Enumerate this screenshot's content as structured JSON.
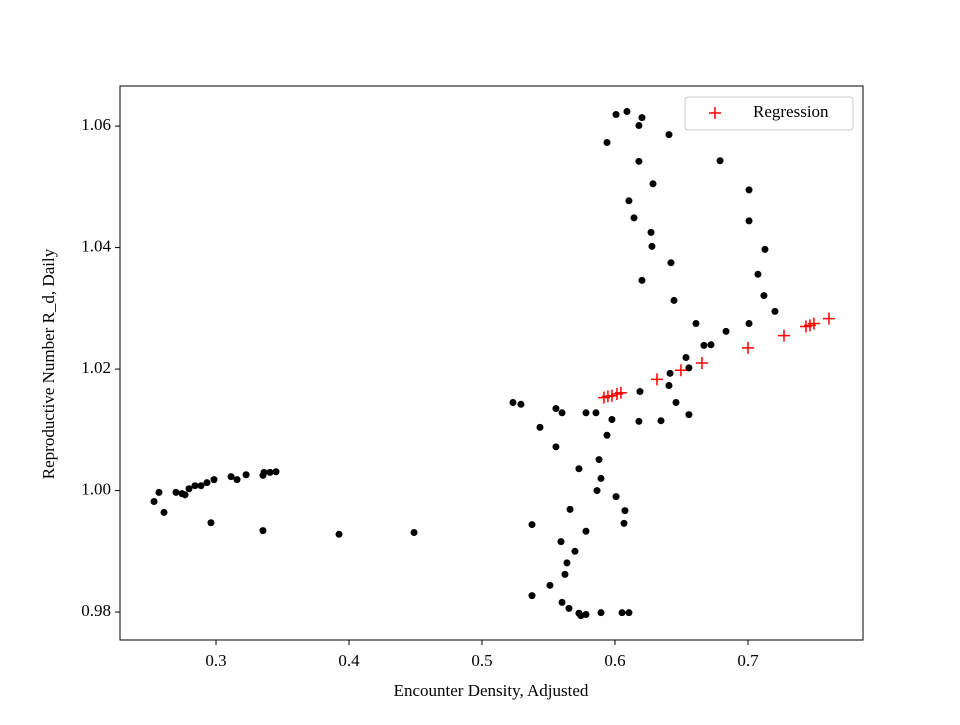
{
  "chart_data": {
    "type": "scatter",
    "xlabel": "Encounter Density, Adjusted",
    "ylabel": "Reproductive Number R_d, Daily",
    "xlim": [
      0.2278,
      0.7865
    ],
    "ylim": [
      0.9754,
      1.0666
    ],
    "xticks": [
      0.3,
      0.4,
      0.5,
      0.6,
      0.7
    ],
    "yticks": [
      0.98,
      {
        "value": 1.0,
        "label": "1.00"
      },
      1.02,
      1.04,
      1.06
    ],
    "legend": "upper right",
    "series": [
      {
        "color": "#000000",
        "marker": "o",
        "x": [
          0.2534,
          0.2571,
          0.2609,
          0.2699,
          0.2744,
          0.2767,
          0.2797,
          0.2842,
          0.2887,
          0.2932,
          0.2985,
          0.3113,
          0.3158,
          0.3226,
          0.3353,
          0.3361,
          0.3406,
          0.3451,
          0.2962,
          0.3353,
          0.3925,
          0.4489,
          0.5233,
          0.5293,
          0.5436,
          0.5556,
          0.5602,
          0.5556,
          0.5782,
          0.5857,
          0.5977,
          0.594,
          0.588,
          0.5729,
          0.5895,
          0.5865,
          0.6008,
          0.6075,
          0.6068,
          0.5662,
          0.5376,
          0.5782,
          0.5594,
          0.5699,
          0.5639,
          0.5624,
          0.5511,
          0.5376,
          0.5602,
          0.5654,
          0.5729,
          0.5744,
          0.5782,
          0.5895,
          0.6053,
          0.6105,
          0.594,
          0.6008,
          0.609,
          0.6203,
          0.618,
          0.6406,
          0.618,
          0.6286,
          0.6105,
          0.6143,
          0.6271,
          0.6278,
          0.6421,
          0.6203,
          0.6444,
          0.6609,
          0.6835,
          0.6669,
          0.6722,
          0.6534,
          0.6556,
          0.6414,
          0.6188,
          0.6406,
          0.6459,
          0.6556,
          0.6346,
          0.618,
          0.679,
          0.7008,
          0.7008,
          0.7128,
          0.7075,
          0.712,
          0.7203,
          0.7008
        ],
        "values": [
          0.9982,
          0.9997,
          0.9964,
          0.9997,
          0.9995,
          0.9993,
          1.0003,
          1.0008,
          1.0008,
          1.0013,
          1.0018,
          1.0023,
          1.0018,
          1.0026,
          1.0025,
          1.003,
          1.003,
          1.0031,
          0.9947,
          0.9934,
          0.9928,
          0.9931,
          1.0145,
          1.0142,
          1.0104,
          1.0135,
          1.0128,
          1.0072,
          1.0128,
          1.0128,
          1.0117,
          1.0091,
          1.0051,
          1.0036,
          1.002,
          1.0,
          0.999,
          0.9967,
          0.9946,
          0.9969,
          0.9944,
          0.9933,
          0.9916,
          0.99,
          0.9881,
          0.9862,
          0.9844,
          0.9827,
          0.9816,
          0.9806,
          0.9798,
          0.9794,
          0.9796,
          0.9799,
          0.9799,
          0.9799,
          1.0573,
          1.0619,
          1.0624,
          1.0614,
          1.0601,
          1.0586,
          1.0542,
          1.0505,
          1.0477,
          1.0449,
          1.0425,
          1.0402,
          1.0375,
          1.0346,
          1.0313,
          1.0275,
          1.0262,
          1.0239,
          1.024,
          1.0219,
          1.0202,
          1.0193,
          1.0163,
          1.0173,
          1.0145,
          1.0125,
          1.0115,
          1.0114,
          1.0543,
          1.0495,
          1.0444,
          1.0397,
          1.0356,
          1.0321,
          1.0295,
          1.0275
        ]
      },
      {
        "name": "Regression",
        "color": "#ff0000",
        "marker": "+",
        "x": [
          0.5917,
          0.5947,
          0.5977,
          0.6015,
          0.6045,
          0.6316,
          0.6496,
          0.6654,
          0.7,
          0.7271,
          0.7436,
          0.7466,
          0.7496,
          0.7609
        ],
        "values": [
          1.0153,
          1.0155,
          1.0156,
          1.0159,
          1.0161,
          1.0183,
          1.0198,
          1.021,
          1.0235,
          1.0255,
          1.027,
          1.0272,
          1.0275,
          1.0283
        ]
      }
    ]
  }
}
